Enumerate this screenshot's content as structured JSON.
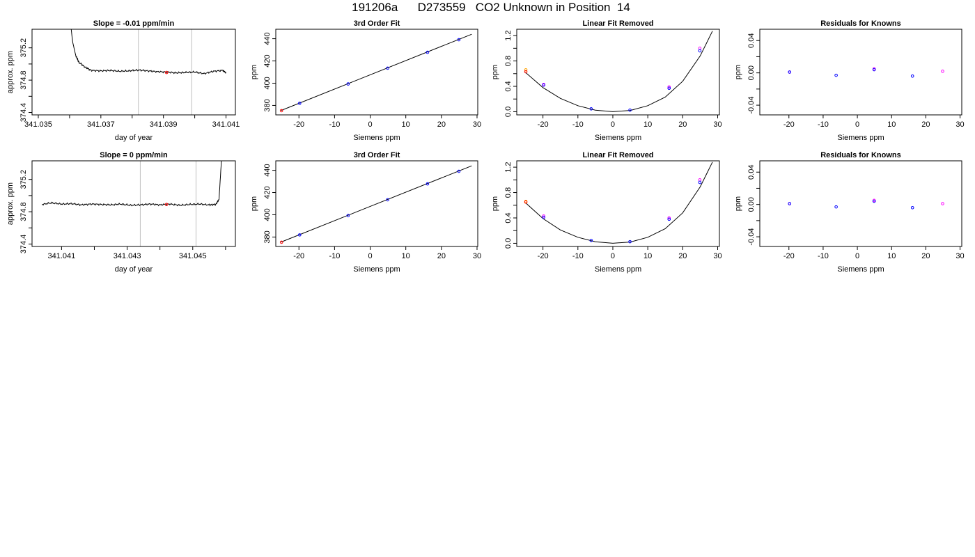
{
  "page": {
    "title": "191206a      D273559   CO2 Unknown in Position  14"
  },
  "colors": {
    "line": "#000000",
    "marker_red": "#ff0000",
    "marker_blue": "#0000ff",
    "marker_magenta": "#ff00ff",
    "marker_orange": "#ffa500",
    "gridline": "#bebebe"
  },
  "chart_data": [
    {
      "type": "line",
      "title": "Slope =  -0.01  ppm/min",
      "xlabel": "day of year",
      "ylabel": "approx. ppm",
      "xlim": [
        341.0348,
        341.0413
      ],
      "ylim": [
        374.37,
        375.43
      ],
      "xticks": [
        341.035,
        341.036,
        341.037,
        341.038,
        341.039,
        341.04,
        341.041
      ],
      "xtick_labels": [
        "341.035",
        "",
        "341.037",
        "",
        "341.039",
        "",
        "341.041"
      ],
      "yticks": [
        374.4,
        374.6,
        374.8,
        375.0,
        375.2
      ],
      "ytick_labels": [
        "374.4",
        "",
        "374.8",
        "",
        "375.2"
      ],
      "vlines": [
        341.0382,
        341.0399
      ],
      "series": [
        {
          "x": [
            341.036,
            341.0361,
            341.0362,
            341.0363,
            341.0365,
            341.0367,
            341.037,
            341.0373,
            341.0376,
            341.0379,
            341.0382,
            341.0385,
            341.0388,
            341.0391,
            341.0394,
            341.0397,
            341.04,
            341.0403,
            341.0406,
            341.0409,
            341.041
          ],
          "y": [
            375.6,
            375.27,
            375.1,
            375.02,
            374.96,
            374.92,
            374.915,
            374.92,
            374.91,
            374.915,
            374.925,
            374.915,
            374.905,
            374.9,
            374.89,
            374.895,
            374.9,
            374.88,
            374.91,
            374.92,
            374.89
          ]
        }
      ],
      "markers": [
        {
          "x": 341.0391,
          "y": 374.895,
          "color": "red"
        }
      ]
    },
    {
      "type": "scatter",
      "title": "3rd Order Fit",
      "xlabel": "Siemens ppm",
      "ylabel": "ppm",
      "xlim": [
        -26.5,
        30.2
      ],
      "ylim": [
        371.5,
        448.5
      ],
      "xticks": [
        -20,
        -10,
        0,
        10,
        20,
        30
      ],
      "xtick_labels": [
        "-20",
        "-10",
        "0",
        "10",
        "20",
        "30"
      ],
      "yticks": [
        380,
        400,
        420,
        440
      ],
      "ytick_labels": [
        "380",
        "400",
        "420",
        "440"
      ],
      "fit_line": {
        "x": [
          -25,
          28.5
        ],
        "y": [
          375.5,
          444.0
        ]
      },
      "points": [
        {
          "x": -24.9,
          "y": 375.3,
          "color": "red"
        },
        {
          "x": -19.8,
          "y": 381.9,
          "color": "blue"
        },
        {
          "x": -6.2,
          "y": 399.3,
          "color": "blue"
        },
        {
          "x": 4.9,
          "y": 413.5,
          "color": "blue"
        },
        {
          "x": 16.1,
          "y": 427.8,
          "color": "blue"
        },
        {
          "x": 24.9,
          "y": 439.1,
          "color": "blue"
        }
      ]
    },
    {
      "type": "scatter",
      "title": "Linear Fit Removed",
      "xlabel": "Siemens ppm",
      "ylabel": "ppm",
      "xlim": [
        -27.5,
        30.5
      ],
      "ylim": [
        -0.05,
        1.3
      ],
      "xticks": [
        -20,
        -10,
        0,
        10,
        20,
        30
      ],
      "xtick_labels": [
        "-20",
        "-10",
        "0",
        "10",
        "20",
        "30"
      ],
      "yticks": [
        0.0,
        0.2,
        0.4,
        0.6,
        0.8,
        1.0,
        1.2
      ],
      "ytick_labels": [
        "0.0",
        "",
        "0.4",
        "",
        "0.8",
        "",
        "1.2"
      ],
      "curve": {
        "x": [
          -25,
          -20,
          -15,
          -10,
          -5,
          0,
          5,
          10,
          15,
          20,
          25,
          28.5
        ],
        "y": [
          0.62,
          0.38,
          0.21,
          0.095,
          0.025,
          0.0,
          0.02,
          0.095,
          0.23,
          0.48,
          0.88,
          1.27
        ]
      },
      "points": [
        {
          "x": -24.9,
          "y": 0.66,
          "color": "orange"
        },
        {
          "x": -24.9,
          "y": 0.63,
          "color": "red"
        },
        {
          "x": -19.8,
          "y": 0.43,
          "color": "magenta"
        },
        {
          "x": -19.8,
          "y": 0.42,
          "color": "blue"
        },
        {
          "x": -6.2,
          "y": 0.045,
          "color": "blue"
        },
        {
          "x": 4.9,
          "y": 0.025,
          "color": "blue"
        },
        {
          "x": 16.1,
          "y": 0.39,
          "color": "magenta"
        },
        {
          "x": 16.1,
          "y": 0.37,
          "color": "blue"
        },
        {
          "x": 24.9,
          "y": 1.0,
          "color": "magenta"
        },
        {
          "x": 24.9,
          "y": 0.96,
          "color": "blue"
        }
      ]
    },
    {
      "type": "scatter",
      "title": "Residuals for Knowns",
      "xlabel": "Siemens ppm",
      "ylabel": "ppm",
      "xlim": [
        -28.5,
        30.5
      ],
      "ylim": [
        -0.052,
        0.054
      ],
      "xticks": [
        -20,
        -10,
        0,
        10,
        20,
        30
      ],
      "xtick_labels": [
        "-20",
        "-10",
        "0",
        "10",
        "20",
        "30"
      ],
      "yticks": [
        -0.04,
        -0.02,
        0.0,
        0.02,
        0.04
      ],
      "ytick_labels": [
        "-0.04",
        "",
        "0.00",
        "",
        "0.04"
      ],
      "points": [
        {
          "x": -19.8,
          "y": 0.001,
          "color": "magenta"
        },
        {
          "x": -19.8,
          "y": 0.001,
          "color": "blue"
        },
        {
          "x": -6.2,
          "y": -0.003,
          "color": "blue"
        },
        {
          "x": 4.9,
          "y": 0.005,
          "color": "magenta"
        },
        {
          "x": 4.9,
          "y": 0.004,
          "color": "blue"
        },
        {
          "x": 16.1,
          "y": -0.004,
          "color": "blue"
        },
        {
          "x": 24.9,
          "y": 0.002,
          "color": "magenta"
        }
      ]
    },
    {
      "type": "line",
      "title": "Slope =  0  ppm/min",
      "xlabel": "day of year",
      "ylabel": "approx. ppm",
      "xlim": [
        341.0401,
        341.0463
      ],
      "ylim": [
        374.37,
        375.43
      ],
      "xticks": [
        341.041,
        341.042,
        341.043,
        341.044,
        341.045,
        341.046
      ],
      "xtick_labels": [
        "341.041",
        "",
        "341.043",
        "",
        "341.045",
        ""
      ],
      "yticks": [
        374.4,
        374.6,
        374.8,
        375.0,
        375.2
      ],
      "ytick_labels": [
        "374.4",
        "",
        "374.8",
        "",
        "375.2"
      ],
      "vlines": [
        341.0434,
        341.0451
      ],
      "series": [
        {
          "x": [
            341.0404,
            341.0407,
            341.041,
            341.0413,
            341.0416,
            341.0419,
            341.0422,
            341.0425,
            341.0428,
            341.0431,
            341.0434,
            341.0437,
            341.044,
            341.0443,
            341.0446,
            341.0449,
            341.0452,
            341.0455,
            341.0457,
            341.0458,
            341.0459
          ],
          "y": [
            374.89,
            374.91,
            374.895,
            374.9,
            374.885,
            374.895,
            374.89,
            374.885,
            374.895,
            374.88,
            374.885,
            374.895,
            374.885,
            374.895,
            374.88,
            374.89,
            374.895,
            374.885,
            374.89,
            374.95,
            375.6
          ]
        }
      ],
      "markers": [
        {
          "x": 341.0442,
          "y": 374.89,
          "color": "red"
        }
      ]
    },
    {
      "type": "scatter",
      "title": "3rd Order Fit",
      "xlabel": "Siemens ppm",
      "ylabel": "ppm",
      "xlim": [
        -26.5,
        30.2
      ],
      "ylim": [
        371.5,
        448.5
      ],
      "xticks": [
        -20,
        -10,
        0,
        10,
        20,
        30
      ],
      "xtick_labels": [
        "-20",
        "-10",
        "0",
        "10",
        "20",
        "30"
      ],
      "yticks": [
        380,
        400,
        420,
        440
      ],
      "ytick_labels": [
        "380",
        "400",
        "420",
        "440"
      ],
      "fit_line": {
        "x": [
          -25,
          28.5
        ],
        "y": [
          375.5,
          444.0
        ]
      },
      "points": [
        {
          "x": -24.9,
          "y": 375.3,
          "color": "red"
        },
        {
          "x": -19.8,
          "y": 381.9,
          "color": "blue"
        },
        {
          "x": -6.2,
          "y": 399.3,
          "color": "blue"
        },
        {
          "x": 4.9,
          "y": 413.5,
          "color": "blue"
        },
        {
          "x": 16.1,
          "y": 427.8,
          "color": "blue"
        },
        {
          "x": 24.9,
          "y": 439.1,
          "color": "blue"
        }
      ]
    },
    {
      "type": "scatter",
      "title": "Linear Fit Removed",
      "xlabel": "Siemens ppm",
      "ylabel": "ppm",
      "xlim": [
        -27.5,
        30.5
      ],
      "ylim": [
        -0.05,
        1.3
      ],
      "xticks": [
        -20,
        -10,
        0,
        10,
        20,
        30
      ],
      "xtick_labels": [
        "-20",
        "-10",
        "0",
        "10",
        "20",
        "30"
      ],
      "yticks": [
        0.0,
        0.2,
        0.4,
        0.6,
        0.8,
        1.0,
        1.2
      ],
      "ytick_labels": [
        "0.0",
        "",
        "0.4",
        "",
        "0.8",
        "",
        "1.2"
      ],
      "curve": {
        "x": [
          -25,
          -20,
          -15,
          -10,
          -5,
          0,
          5,
          10,
          15,
          20,
          25,
          28.5
        ],
        "y": [
          0.64,
          0.39,
          0.21,
          0.095,
          0.025,
          0.0,
          0.02,
          0.095,
          0.23,
          0.48,
          0.89,
          1.28
        ]
      },
      "points": [
        {
          "x": -24.9,
          "y": 0.66,
          "color": "orange"
        },
        {
          "x": -24.9,
          "y": 0.65,
          "color": "red"
        },
        {
          "x": -19.8,
          "y": 0.43,
          "color": "magenta"
        },
        {
          "x": -19.8,
          "y": 0.41,
          "color": "blue"
        },
        {
          "x": -6.2,
          "y": 0.045,
          "color": "blue"
        },
        {
          "x": 4.9,
          "y": 0.025,
          "color": "blue"
        },
        {
          "x": 16.1,
          "y": 0.4,
          "color": "magenta"
        },
        {
          "x": 16.1,
          "y": 0.38,
          "color": "blue"
        },
        {
          "x": 24.9,
          "y": 1.0,
          "color": "magenta"
        },
        {
          "x": 24.9,
          "y": 0.96,
          "color": "blue"
        }
      ]
    },
    {
      "type": "scatter",
      "title": "Residuals for Knowns",
      "xlabel": "Siemens ppm",
      "ylabel": "ppm",
      "xlim": [
        -28.5,
        30.5
      ],
      "ylim": [
        -0.052,
        0.054
      ],
      "xticks": [
        -20,
        -10,
        0,
        10,
        20,
        30
      ],
      "xtick_labels": [
        "-20",
        "-10",
        "0",
        "10",
        "20",
        "30"
      ],
      "yticks": [
        -0.04,
        -0.02,
        0.0,
        0.02,
        0.04
      ],
      "ytick_labels": [
        "-0.04",
        "",
        "0.00",
        "",
        "0.04"
      ],
      "points": [
        {
          "x": -19.8,
          "y": 0.001,
          "color": "magenta"
        },
        {
          "x": -19.8,
          "y": 0.001,
          "color": "blue"
        },
        {
          "x": -6.2,
          "y": -0.003,
          "color": "blue"
        },
        {
          "x": 4.9,
          "y": 0.005,
          "color": "magenta"
        },
        {
          "x": 4.9,
          "y": 0.004,
          "color": "blue"
        },
        {
          "x": 16.1,
          "y": -0.004,
          "color": "blue"
        },
        {
          "x": 24.9,
          "y": 0.001,
          "color": "magenta"
        }
      ]
    }
  ]
}
